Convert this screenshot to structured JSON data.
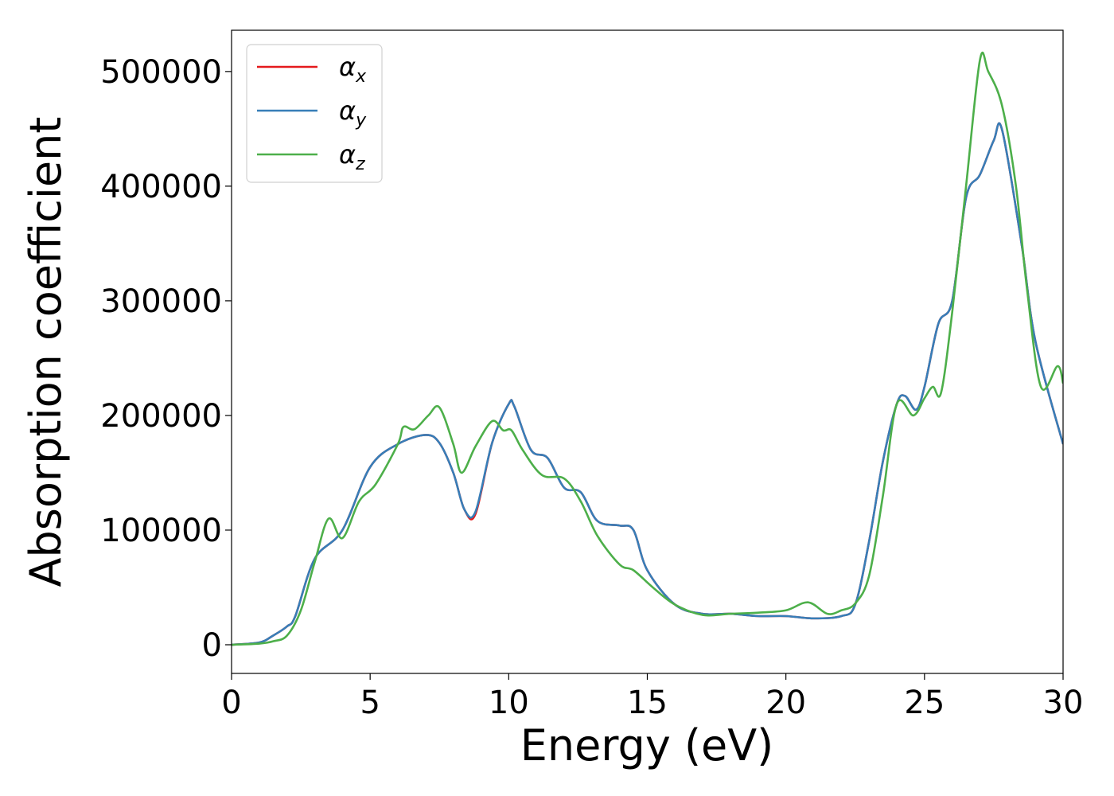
{
  "chart_data": {
    "type": "line",
    "title": "",
    "xlabel": "Energy (eV)",
    "ylabel": "Absorption coefficient",
    "xlim": [
      0,
      30
    ],
    "ylim": [
      -25000,
      536000
    ],
    "xticks": [
      0,
      5,
      10,
      15,
      20,
      25,
      30
    ],
    "yticks": [
      0,
      100000,
      200000,
      300000,
      400000,
      500000
    ],
    "grid": false,
    "legend_position": "top-left",
    "series": [
      {
        "name": "αx",
        "legend_base": "α",
        "legend_sub": "x",
        "color": "#e41a1c",
        "x": [
          0,
          1,
          1.5,
          2,
          2.3,
          3,
          4,
          5,
          6,
          7,
          7.5,
          8,
          8.4,
          8.8,
          9.4,
          10,
          10.2,
          10.8,
          11.4,
          12,
          12.6,
          13.2,
          14,
          14.5,
          15,
          16,
          17,
          18,
          19,
          20,
          21,
          22,
          22.5,
          23,
          23.5,
          24,
          24.3,
          24.7,
          25,
          25.5,
          26,
          26.5,
          27,
          27.5,
          27.8,
          28.5,
          29,
          30
        ],
        "y": [
          0,
          2000,
          8000,
          16000,
          25000,
          75000,
          100000,
          155000,
          175000,
          183000,
          176000,
          150000,
          118000,
          114000,
          176000,
          210000,
          208000,
          170000,
          163000,
          137000,
          133000,
          108000,
          104000,
          100000,
          65000,
          35000,
          27000,
          27000,
          25000,
          25000,
          23000,
          25000,
          35000,
          90000,
          160000,
          210000,
          217000,
          205000,
          225000,
          280000,
          300000,
          390000,
          410000,
          440000,
          449000,
          350000,
          265000,
          175000
        ]
      },
      {
        "name": "αy",
        "legend_base": "α",
        "legend_sub": "y",
        "color": "#377eb8",
        "x": [
          0,
          1,
          1.5,
          2,
          2.3,
          3,
          4,
          5,
          6,
          7,
          7.5,
          8,
          8.4,
          8.8,
          9.4,
          10,
          10.2,
          10.8,
          11.4,
          12,
          12.6,
          13.2,
          14,
          14.5,
          15,
          16,
          17,
          18,
          19,
          20,
          21,
          22,
          22.5,
          23,
          23.5,
          24,
          24.3,
          24.7,
          25,
          25.5,
          26,
          26.5,
          27,
          27.5,
          27.8,
          28.5,
          29,
          30
        ],
        "y": [
          0,
          2000,
          8000,
          16000,
          25000,
          75000,
          100000,
          155000,
          175000,
          183000,
          176000,
          150000,
          118000,
          116000,
          176000,
          210000,
          208000,
          170000,
          163000,
          137000,
          133000,
          108000,
          104000,
          100000,
          65000,
          35000,
          27000,
          27000,
          25000,
          25000,
          23000,
          25000,
          35000,
          90000,
          160000,
          210000,
          217000,
          205000,
          225000,
          280000,
          300000,
          390000,
          410000,
          440000,
          449000,
          350000,
          265000,
          175000
        ]
      },
      {
        "name": "αz",
        "legend_base": "α",
        "legend_sub": "z",
        "color": "#4daf4a",
        "x": [
          0,
          1,
          1.5,
          2,
          2.5,
          3,
          3.5,
          4,
          4.6,
          5.2,
          6,
          6.2,
          6.6,
          7.1,
          7.5,
          8,
          8.3,
          8.8,
          9.4,
          9.8,
          10.1,
          10.5,
          11.2,
          12,
          12.6,
          13.2,
          14,
          14.5,
          15.2,
          16,
          17,
          18,
          19,
          20,
          20.8,
          21.5,
          22,
          22.5,
          23,
          23.5,
          24,
          24.6,
          25,
          25.3,
          25.6,
          26,
          26.5,
          27,
          27.3,
          27.8,
          28.3,
          28.7,
          29.2,
          29.8,
          30
        ],
        "y": [
          0,
          1000,
          3000,
          8000,
          30000,
          72000,
          110000,
          93000,
          125000,
          140000,
          175000,
          190000,
          188000,
          200000,
          207000,
          175000,
          150000,
          173000,
          195000,
          187000,
          187000,
          170000,
          148000,
          145000,
          125000,
          95000,
          70000,
          65000,
          50000,
          35000,
          26000,
          27000,
          28000,
          30000,
          37000,
          27000,
          30000,
          36000,
          60000,
          130000,
          210000,
          200000,
          215000,
          225000,
          220000,
          290000,
          400000,
          510000,
          500000,
          470000,
          400000,
          310000,
          225000,
          243000,
          228000
        ]
      }
    ]
  }
}
